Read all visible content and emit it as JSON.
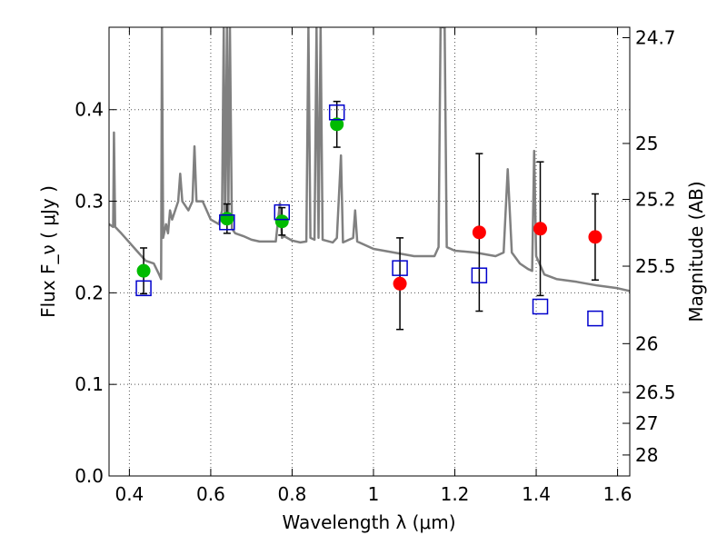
{
  "chart_data": {
    "type": "scatter",
    "title": "",
    "xlabel": "Wavelength  λ (μm)",
    "ylabel": "Flux  F_ν  ( μJy )",
    "y2label": "Magnitude (AB)",
    "xlim": [
      0.35,
      1.63
    ],
    "ylim": [
      0.0,
      0.49
    ],
    "grid": true,
    "x_ticks": [
      0.4,
      0.6,
      0.8,
      1.0,
      1.2,
      1.4,
      1.6
    ],
    "x_tick_labels": [
      "0.4",
      "0.6",
      "0.8",
      "1",
      "1.2",
      "1.4",
      "1.6"
    ],
    "y_ticks": [
      0.0,
      0.1,
      0.2,
      0.3,
      0.4
    ],
    "y_tick_labels": [
      "0.0",
      "0.1",
      "0.2",
      "0.3",
      "0.4"
    ],
    "y2_ticks": [
      {
        "label": "24.7",
        "flux": 0.4786
      },
      {
        "label": "25",
        "flux": 0.3631
      },
      {
        "label": "25.2",
        "flux": 0.302
      },
      {
        "label": "25.5",
        "flux": 0.2291
      },
      {
        "label": "26",
        "flux": 0.1445
      },
      {
        "label": "26.5",
        "flux": 0.0912
      },
      {
        "label": "27",
        "flux": 0.0575
      },
      {
        "label": "28",
        "flux": 0.0229
      }
    ],
    "colors": {
      "template": "#808080",
      "green": "#00bb00",
      "red": "#ff0000",
      "model": "#0000cc",
      "errorbar": "#000000"
    },
    "series": [
      {
        "type": "line",
        "points": [
          [
            0.35,
            0.275
          ],
          [
            0.36,
            0.272
          ],
          [
            0.362,
            0.375
          ],
          [
            0.365,
            0.272
          ],
          [
            0.38,
            0.265
          ],
          [
            0.4,
            0.255
          ],
          [
            0.42,
            0.245
          ],
          [
            0.44,
            0.235
          ],
          [
            0.46,
            0.232
          ],
          [
            0.473,
            0.22
          ],
          [
            0.478,
            0.215
          ],
          [
            0.48,
            0.49
          ],
          [
            0.483,
            0.26
          ],
          [
            0.49,
            0.275
          ],
          [
            0.495,
            0.265
          ],
          [
            0.5,
            0.29
          ],
          [
            0.505,
            0.28
          ],
          [
            0.52,
            0.3
          ],
          [
            0.525,
            0.33
          ],
          [
            0.53,
            0.3
          ],
          [
            0.545,
            0.29
          ],
          [
            0.555,
            0.3
          ],
          [
            0.56,
            0.36
          ],
          [
            0.565,
            0.3
          ],
          [
            0.58,
            0.3
          ],
          [
            0.6,
            0.28
          ],
          [
            0.62,
            0.275
          ],
          [
            0.628,
            0.29
          ],
          [
            0.632,
            0.49
          ],
          [
            0.635,
            0.275
          ],
          [
            0.64,
            0.49
          ],
          [
            0.643,
            0.275
          ],
          [
            0.647,
            0.49
          ],
          [
            0.652,
            0.27
          ],
          [
            0.66,
            0.265
          ],
          [
            0.68,
            0.262
          ],
          [
            0.7,
            0.258
          ],
          [
            0.72,
            0.256
          ],
          [
            0.74,
            0.256
          ],
          [
            0.76,
            0.256
          ],
          [
            0.77,
            0.298
          ],
          [
            0.775,
            0.26
          ],
          [
            0.78,
            0.262
          ],
          [
            0.8,
            0.257
          ],
          [
            0.82,
            0.255
          ],
          [
            0.835,
            0.256
          ],
          [
            0.84,
            0.49
          ],
          [
            0.845,
            0.26
          ],
          [
            0.855,
            0.258
          ],
          [
            0.86,
            0.49
          ],
          [
            0.865,
            0.26
          ],
          [
            0.87,
            0.49
          ],
          [
            0.875,
            0.258
          ],
          [
            0.9,
            0.255
          ],
          [
            0.91,
            0.26
          ],
          [
            0.92,
            0.35
          ],
          [
            0.925,
            0.255
          ],
          [
            0.95,
            0.26
          ],
          [
            0.955,
            0.29
          ],
          [
            0.96,
            0.256
          ],
          [
            1.0,
            0.248
          ],
          [
            1.05,
            0.244
          ],
          [
            1.1,
            0.24
          ],
          [
            1.15,
            0.24
          ],
          [
            1.16,
            0.25
          ],
          [
            1.165,
            0.49
          ],
          [
            1.175,
            0.49
          ],
          [
            1.18,
            0.25
          ],
          [
            1.2,
            0.246
          ],
          [
            1.25,
            0.244
          ],
          [
            1.3,
            0.24
          ],
          [
            1.32,
            0.244
          ],
          [
            1.33,
            0.335
          ],
          [
            1.34,
            0.244
          ],
          [
            1.36,
            0.232
          ],
          [
            1.38,
            0.226
          ],
          [
            1.39,
            0.224
          ],
          [
            1.395,
            0.355
          ],
          [
            1.4,
            0.24
          ],
          [
            1.42,
            0.22
          ],
          [
            1.45,
            0.215
          ],
          [
            1.5,
            0.212
          ],
          [
            1.55,
            0.208
          ],
          [
            1.6,
            0.205
          ],
          [
            1.63,
            0.202
          ]
        ]
      },
      {
        "type": "scatter",
        "marker": "circle",
        "color": "green",
        "points": [
          {
            "x": 0.435,
            "y": 0.224,
            "err": 0.025
          },
          {
            "x": 0.64,
            "y": 0.281,
            "err": 0.016
          },
          {
            "x": 0.775,
            "y": 0.278,
            "err": 0.015
          },
          {
            "x": 0.91,
            "y": 0.384,
            "err": 0.025
          }
        ]
      },
      {
        "type": "scatter",
        "marker": "circle",
        "color": "red",
        "points": [
          {
            "x": 1.065,
            "y": 0.21,
            "err": 0.05
          },
          {
            "x": 1.26,
            "y": 0.266,
            "err": 0.086
          },
          {
            "x": 1.41,
            "y": 0.27,
            "err": 0.073
          },
          {
            "x": 1.545,
            "y": 0.261,
            "err": 0.047
          }
        ]
      },
      {
        "type": "scatter",
        "marker": "square",
        "color": "model",
        "points": [
          {
            "x": 0.435,
            "y": 0.205
          },
          {
            "x": 0.64,
            "y": 0.277
          },
          {
            "x": 0.775,
            "y": 0.288
          },
          {
            "x": 0.91,
            "y": 0.397
          },
          {
            "x": 1.065,
            "y": 0.227
          },
          {
            "x": 1.26,
            "y": 0.219
          },
          {
            "x": 1.41,
            "y": 0.185
          },
          {
            "x": 1.545,
            "y": 0.172
          }
        ]
      }
    ]
  }
}
